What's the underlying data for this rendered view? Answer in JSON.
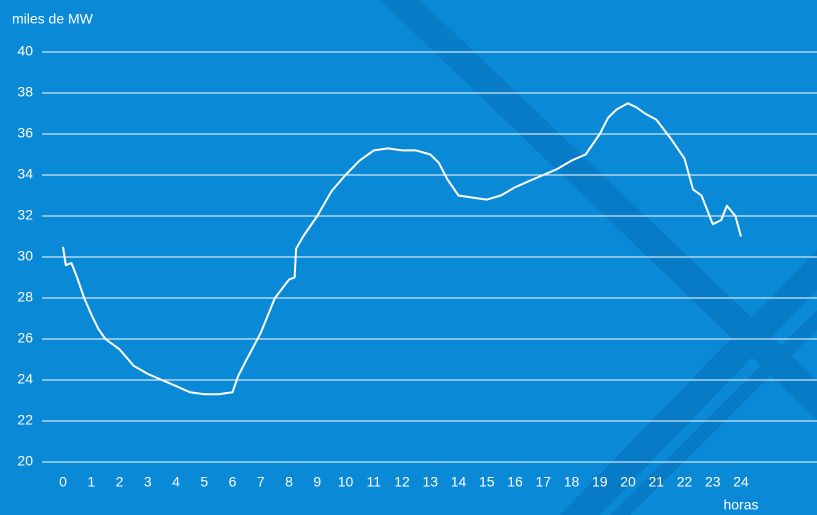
{
  "chart_data": {
    "type": "line",
    "y_label": "miles de MW",
    "x_label": "horas",
    "x": [
      0,
      0.1,
      0.3,
      0.5,
      0.75,
      1,
      1.25,
      1.5,
      2,
      2.5,
      3,
      3.5,
      4,
      4.5,
      5,
      5.5,
      6,
      6.2,
      6.5,
      7,
      7.5,
      8,
      8.2,
      8.25,
      8.5,
      9,
      9.5,
      10,
      10.5,
      11,
      11.5,
      12,
      12.5,
      13,
      13.3,
      13.6,
      14,
      14.5,
      15,
      15.5,
      16,
      16.5,
      17,
      17.5,
      18,
      18.5,
      19,
      19.3,
      19.6,
      20,
      20.3,
      20.6,
      21,
      21.5,
      22,
      22.3,
      22.6,
      23,
      23.3,
      23.5,
      23.8,
      24
    ],
    "values": [
      30.5,
      29.6,
      29.7,
      29.0,
      28.0,
      27.2,
      26.5,
      26.0,
      25.5,
      24.7,
      24.3,
      24.0,
      23.7,
      23.4,
      23.3,
      23.3,
      23.4,
      24.2,
      25.0,
      26.3,
      28.0,
      28.9,
      29.0,
      30.4,
      31.0,
      32.0,
      33.2,
      34.0,
      34.7,
      35.2,
      35.3,
      35.2,
      35.2,
      35.0,
      34.6,
      33.8,
      33.0,
      32.9,
      32.8,
      33.0,
      33.4,
      33.7,
      34.0,
      34.3,
      34.7,
      35.0,
      36.0,
      36.8,
      37.2,
      37.5,
      37.3,
      37.0,
      36.7,
      35.8,
      34.8,
      33.3,
      33.0,
      31.6,
      31.8,
      32.5,
      32.0,
      31.0
    ],
    "color": "#ffffff",
    "xlim": [
      0,
      24
    ],
    "xticks": [
      0,
      1,
      2,
      3,
      4,
      5,
      6,
      7,
      8,
      9,
      10,
      11,
      12,
      13,
      14,
      15,
      16,
      17,
      18,
      19,
      20,
      21,
      22,
      23,
      24
    ],
    "ylim": [
      20,
      40
    ],
    "yticks": [
      20,
      22,
      24,
      26,
      28,
      30,
      32,
      34,
      36,
      38,
      40
    ],
    "grid": true
  }
}
